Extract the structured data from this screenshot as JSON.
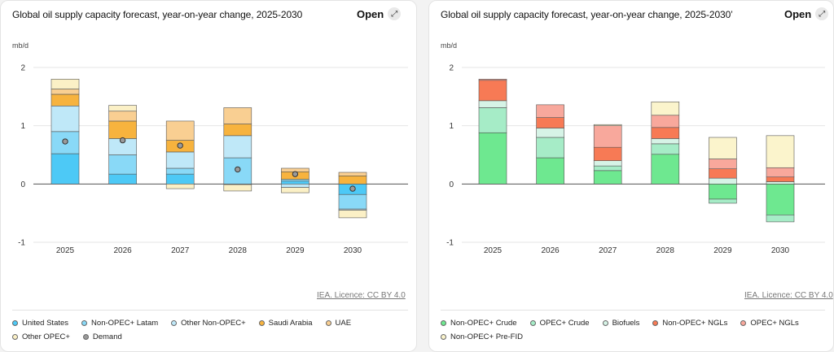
{
  "left": {
    "title": "Global oil supply capacity forecast, year-on-year change, 2025-2030",
    "open_label": "Open",
    "unit": "mb/d",
    "source": "IEA. Licence: CC BY 4.0",
    "legend": [
      {
        "label": "United States",
        "color": "#4dc9f6"
      },
      {
        "label": "Non-OPEC+ Latam",
        "color": "#89d9f7"
      },
      {
        "label": "Other Non-OPEC+",
        "color": "#bfe8f8"
      },
      {
        "label": "Saudi Arabia",
        "color": "#f7b33e"
      },
      {
        "label": "UAE",
        "color": "#f9cf92"
      },
      {
        "label": "Other OPEC+",
        "color": "#fbf0c6"
      },
      {
        "label": "Demand",
        "color": "#9a9a9a"
      }
    ]
  },
  "right": {
    "title": "Global oil supply capacity forecast, year-on-year change, 2025-2030’",
    "open_label": "Open",
    "unit": "mb/d",
    "source": "IEA. Licence: CC BY 4.0",
    "legend": [
      {
        "label": "Non-OPEC+ Crude",
        "color": "#6ee890"
      },
      {
        "label": "OPEC+ Crude",
        "color": "#a6ecc7"
      },
      {
        "label": "Biofuels",
        "color": "#d6f3e6"
      },
      {
        "label": "Non-OPEC+ NGLs",
        "color": "#f77a55"
      },
      {
        "label": "OPEC+ NGLs",
        "color": "#f8a89c"
      },
      {
        "label": "Non-OPEC+ Pre-FID",
        "color": "#fbf4cc"
      }
    ]
  },
  "chart_data": [
    {
      "type": "bar",
      "stacked": true,
      "title": "Global oil supply capacity forecast, year-on-year change, 2025-2030",
      "ylabel": "mb/d",
      "ylim": [
        -1,
        2
      ],
      "yticks": [
        2,
        1,
        0,
        -1
      ],
      "categories": [
        "2025",
        "2026",
        "2027",
        "2028",
        "2029",
        "2030"
      ],
      "series": [
        {
          "name": "United States",
          "color": "#4dc9f6",
          "values": [
            0.52,
            0.17,
            0.17,
            -0.01,
            0.05,
            -0.18
          ]
        },
        {
          "name": "Non-OPEC+ Latam",
          "color": "#89d9f7",
          "values": [
            0.38,
            0.33,
            0.1,
            0.45,
            0.03,
            -0.25
          ]
        },
        {
          "name": "Other Non-OPEC+",
          "color": "#bfe8f8",
          "values": [
            0.44,
            0.28,
            0.28,
            0.38,
            -0.06,
            -0.02
          ]
        },
        {
          "name": "Saudi Arabia",
          "color": "#f7b33e",
          "values": [
            0.2,
            0.3,
            0.2,
            0.2,
            0.13,
            0.14
          ]
        },
        {
          "name": "UAE",
          "color": "#f9cf92",
          "values": [
            0.09,
            0.17,
            0.33,
            0.28,
            0.06,
            0.06
          ]
        },
        {
          "name": "Other OPEC+",
          "color": "#fbf0c6",
          "values": [
            0.17,
            0.1,
            -0.08,
            -0.11,
            -0.09,
            -0.13
          ]
        }
      ],
      "demand": [
        0.73,
        0.75,
        0.66,
        0.25,
        0.17,
        -0.08
      ],
      "legend_position": "bottom"
    },
    {
      "type": "bar",
      "stacked": true,
      "title": "Global oil supply capacity forecast, year-on-year change, 2025-2030’",
      "ylabel": "mb/d",
      "ylim": [
        -1,
        2
      ],
      "yticks": [
        2,
        1,
        0,
        -1
      ],
      "categories": [
        "2025",
        "2026",
        "2027",
        "2028",
        "2029",
        "2030"
      ],
      "series": [
        {
          "name": "Non-OPEC+ Crude",
          "color": "#6ee890",
          "values": [
            0.88,
            0.45,
            0.23,
            0.51,
            -0.26,
            -0.53
          ]
        },
        {
          "name": "OPEC+ Crude",
          "color": "#a6ecc7",
          "values": [
            0.43,
            0.35,
            0.08,
            0.18,
            -0.07,
            -0.12
          ]
        },
        {
          "name": "Biofuels",
          "color": "#d6f3e6",
          "values": [
            0.12,
            0.16,
            0.09,
            0.09,
            0.1,
            0.04
          ]
        },
        {
          "name": "Non-OPEC+ NGLs",
          "color": "#f77a55",
          "values": [
            0.35,
            0.18,
            0.23,
            0.19,
            0.16,
            0.08
          ]
        },
        {
          "name": "OPEC+ NGLs",
          "color": "#f8a89c",
          "values": [
            0.02,
            0.22,
            0.37,
            0.21,
            0.17,
            0.16
          ]
        },
        {
          "name": "Non-OPEC+ Pre-FID",
          "color": "#fbf4cc",
          "values": [
            0.0,
            0.0,
            0.02,
            0.23,
            0.37,
            0.55
          ]
        }
      ],
      "legend_position": "bottom"
    }
  ]
}
